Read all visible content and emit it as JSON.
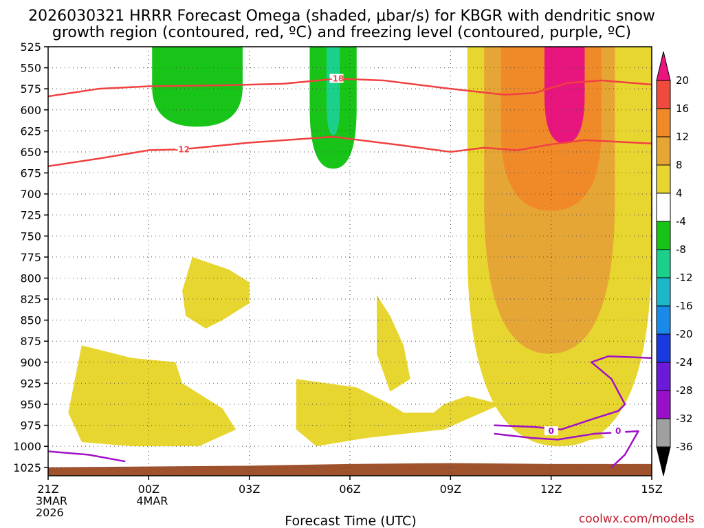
{
  "chart_data": {
    "type": "heatmap",
    "title_line1": "2026030321 HRRR Forecast Omega (shaded, μbar/s) for KBGR with dendritic snow",
    "title_line2": "growth region (contoured, red, ºC) and freezing level (contoured, purple, ºC)",
    "xlabel": "Forecast Time (UTC)",
    "credit": "coolwx.com/models",
    "x_ticks": [
      {
        "hour": 0,
        "lines": [
          "21Z",
          "3MAR",
          "2026"
        ]
      },
      {
        "hour": 3,
        "lines": [
          "00Z",
          "4MAR"
        ]
      },
      {
        "hour": 6,
        "lines": [
          "03Z"
        ]
      },
      {
        "hour": 9,
        "lines": [
          "06Z"
        ]
      },
      {
        "hour": 12,
        "lines": [
          "09Z"
        ]
      },
      {
        "hour": 15,
        "lines": [
          "12Z"
        ]
      },
      {
        "hour": 18,
        "lines": [
          "15Z"
        ]
      }
    ],
    "x_range_hours": [
      0,
      18
    ],
    "y_levels": [
      525,
      550,
      575,
      600,
      625,
      650,
      675,
      700,
      725,
      750,
      775,
      800,
      825,
      850,
      875,
      900,
      925,
      950,
      975,
      1000,
      1025
    ],
    "y_range_hpa": [
      525,
      1035
    ],
    "colorbar": {
      "labels": [
        "20",
        "16",
        "12",
        "8",
        "4",
        "-4",
        "-8",
        "-12",
        "-16",
        "-20",
        "-24",
        "-28",
        "-32",
        "-36"
      ],
      "bins": [
        {
          "lo": 20,
          "hi": 99,
          "color": "#e8157e"
        },
        {
          "lo": 16,
          "hi": 20,
          "color": "#f04a3c"
        },
        {
          "lo": 12,
          "hi": 16,
          "color": "#f08a28"
        },
        {
          "lo": 8,
          "hi": 12,
          "color": "#e6a636"
        },
        {
          "lo": 4,
          "hi": 8,
          "color": "#e8d630"
        },
        {
          "lo": -4,
          "hi": 4,
          "color": "#ffffff"
        },
        {
          "lo": -8,
          "hi": -4,
          "color": "#18c418"
        },
        {
          "lo": -12,
          "hi": -8,
          "color": "#1ad08a"
        },
        {
          "lo": -16,
          "hi": -12,
          "color": "#1cb8c8"
        },
        {
          "lo": -20,
          "hi": -16,
          "color": "#1a8ae8"
        },
        {
          "lo": -24,
          "hi": -20,
          "color": "#1a3ae0"
        },
        {
          "lo": -28,
          "hi": -24,
          "color": "#6a1ad8"
        },
        {
          "lo": -32,
          "hi": -28,
          "color": "#9a10c8"
        },
        {
          "lo": -36,
          "hi": -32,
          "color": "#a0a0a0"
        },
        {
          "lo": -99,
          "hi": -36,
          "color": "#000000"
        }
      ]
    },
    "omega_regions": [
      {
        "name": "updraft-core-hour4",
        "value": -6,
        "color": "#18c418",
        "hour_range": [
          3.1,
          5.8
        ],
        "p_range": [
          525,
          620
        ]
      },
      {
        "name": "updraft-core-hour9",
        "value": -7,
        "color": "#18c418",
        "hour_range": [
          7.8,
          9.2
        ],
        "p_range": [
          525,
          670
        ]
      },
      {
        "name": "updraft-peak-hour9",
        "value": -10,
        "color": "#1ad08a",
        "hour_range": [
          8.3,
          8.7
        ],
        "p_range": [
          545,
          630
        ]
      },
      {
        "name": "descent-band-late",
        "value": 6,
        "color": "#e8d630",
        "hour_range": [
          12.5,
          18
        ],
        "p_range": [
          525,
          1000
        ]
      },
      {
        "name": "descent-core-late",
        "value": 10,
        "color": "#e6a636",
        "hour_range": [
          13.0,
          16.9
        ],
        "p_range": [
          525,
          890
        ]
      },
      {
        "name": "descent-strong-late",
        "value": 14,
        "color": "#f08a28",
        "hour_range": [
          13.5,
          16.5
        ],
        "p_range": [
          525,
          720
        ]
      },
      {
        "name": "descent-peak-late",
        "value": 22,
        "color": "#e8157e",
        "hour_range": [
          14.8,
          16.0
        ],
        "p_range": [
          525,
          640
        ]
      }
    ],
    "dgz_contours": [
      {
        "label": "-18",
        "hour_at_label": 8.6,
        "p_at_label": 563,
        "points": [
          [
            0,
            584
          ],
          [
            1.5,
            575
          ],
          [
            3,
            572
          ],
          [
            5,
            571
          ],
          [
            7,
            569
          ],
          [
            8.6,
            563
          ],
          [
            10,
            565
          ],
          [
            12,
            575
          ],
          [
            13.6,
            582
          ],
          [
            14.5,
            580
          ],
          [
            15.5,
            568
          ],
          [
            16.5,
            565
          ],
          [
            18,
            570
          ]
        ]
      },
      {
        "label": "-12",
        "hour_at_label": 4.0,
        "p_at_label": 647,
        "points": [
          [
            0,
            667
          ],
          [
            1.5,
            658
          ],
          [
            3,
            648
          ],
          [
            4,
            647
          ],
          [
            6,
            639
          ],
          [
            8.5,
            632
          ],
          [
            10.5,
            642
          ],
          [
            12,
            650
          ],
          [
            13,
            645
          ],
          [
            14,
            648
          ],
          [
            15,
            641
          ],
          [
            16,
            636
          ],
          [
            18,
            640
          ]
        ]
      }
    ],
    "freezing_contours": [
      {
        "label": "0",
        "hour_at_label": 15.0,
        "p_at_label": 982,
        "points": [
          [
            13.3,
            975
          ],
          [
            14.5,
            977
          ],
          [
            15.3,
            980
          ],
          [
            16.2,
            968
          ],
          [
            17.0,
            958
          ],
          [
            17.2,
            950
          ],
          [
            16.8,
            920
          ],
          [
            16.2,
            900
          ],
          [
            16.7,
            893
          ],
          [
            18,
            895
          ]
        ]
      },
      {
        "label": "0",
        "hour_at_label": 17.0,
        "p_at_label": 982,
        "points": [
          [
            13.3,
            985
          ],
          [
            14.4,
            990
          ],
          [
            15.2,
            992
          ],
          [
            16.3,
            985
          ],
          [
            17.6,
            982
          ],
          [
            17.2,
            1010
          ],
          [
            16.8,
            1025
          ]
        ]
      },
      {
        "label": "",
        "hour_at_label": 0,
        "p_at_label": 0,
        "points": [
          [
            0,
            1006
          ],
          [
            1.2,
            1010
          ],
          [
            2.3,
            1018
          ]
        ]
      }
    ],
    "ground_fill_color": "#a0522d"
  }
}
